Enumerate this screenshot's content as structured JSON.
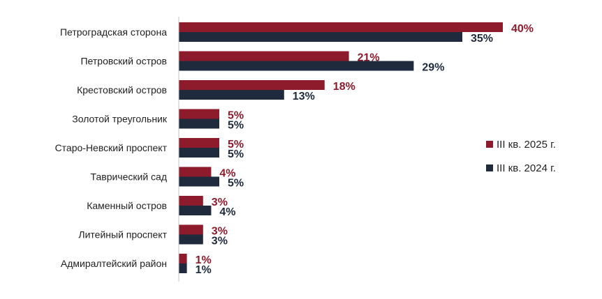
{
  "chart_data": {
    "type": "bar",
    "orientation": "horizontal",
    "title": "",
    "xlabel": "",
    "ylabel": "",
    "categories": [
      "Петроградская сторона",
      "Петровский остров",
      "Крестовский остров",
      "Золотой треугольник",
      "Старо-Невский проспект",
      "Таврический сад",
      "Каменный остров",
      "Литейный проспект",
      "Адмиралтейский район"
    ],
    "series": [
      {
        "name": "III кв. 2025 г.",
        "color": "#8E1B2C",
        "values": [
          40,
          21,
          18,
          5,
          5,
          4,
          3,
          3,
          1
        ],
        "labels": [
          "40%",
          "21%",
          "18%",
          "5%",
          "5%",
          "4%",
          "3%",
          "3%",
          "1%"
        ]
      },
      {
        "name": "III кв. 2024 г.",
        "color": "#1F2B3D",
        "values": [
          35,
          29,
          13,
          5,
          5,
          5,
          4,
          3,
          1
        ],
        "labels": [
          "35%",
          "29%",
          "13%",
          "5%",
          "5%",
          "5%",
          "4%",
          "3%",
          "1%"
        ]
      }
    ],
    "xlim": [
      0,
      40
    ],
    "grid": false,
    "legend_position": "right"
  }
}
